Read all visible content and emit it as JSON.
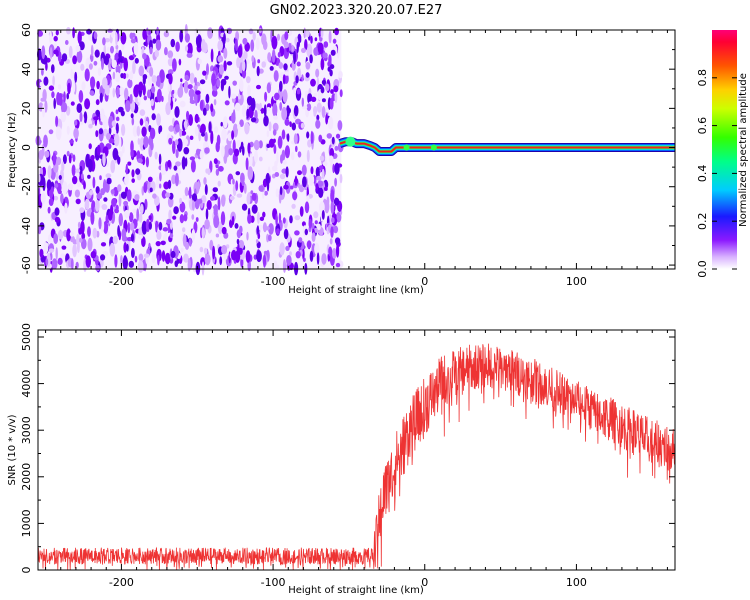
{
  "title": "GN02.2023.320.20.07.E27",
  "chart_data": [
    {
      "type": "heatmap",
      "xlabel": "Height of straight line (km)",
      "ylabel": "Frequency (Hz)",
      "xlim": [
        -255,
        165
      ],
      "ylim": [
        -62,
        60
      ],
      "x_ticks": [
        -200,
        -100,
        0,
        100
      ],
      "y_ticks": [
        -60,
        -40,
        -20,
        0,
        20,
        40,
        60
      ],
      "noise_region": [
        -255,
        -55
      ],
      "track": [
        [
          -56,
          2
        ],
        [
          -52,
          3
        ],
        [
          -48,
          3
        ],
        [
          -45,
          2
        ],
        [
          -40,
          2
        ],
        [
          -36,
          1
        ],
        [
          -33,
          0
        ],
        [
          -30,
          -2
        ],
        [
          -26,
          -2
        ],
        [
          -22,
          -2
        ],
        [
          -19,
          0
        ],
        [
          -10,
          0
        ],
        [
          0,
          0
        ],
        [
          50,
          0
        ],
        [
          100,
          0
        ],
        [
          165,
          0
        ]
      ],
      "colorbar": {
        "label": "Normalized spectral amplitude",
        "range": [
          0,
          1
        ],
        "ticks": [
          "0.0",
          "0.2",
          "0.4",
          "0.6",
          "0.8"
        ]
      }
    },
    {
      "type": "line",
      "xlabel": "Height of straight line (km)",
      "ylabel": "SNR (10 * v/v)",
      "xlim": [
        -255,
        165
      ],
      "ylim": [
        0,
        5150
      ],
      "x_ticks": [
        -200,
        -100,
        0,
        100
      ],
      "y_ticks": [
        0,
        1000,
        2000,
        3000,
        4000,
        5000
      ],
      "series_color": "#ee3333",
      "envelope": [
        [
          -255,
          300
        ],
        [
          -35,
          300
        ],
        [
          -32,
          700
        ],
        [
          -28,
          1500
        ],
        [
          -20,
          2200
        ],
        [
          -10,
          3000
        ],
        [
          0,
          3500
        ],
        [
          10,
          4000
        ],
        [
          20,
          4200
        ],
        [
          30,
          4350
        ],
        [
          40,
          4400
        ],
        [
          55,
          4300
        ],
        [
          70,
          4100
        ],
        [
          90,
          3800
        ],
        [
          110,
          3450
        ],
        [
          130,
          3100
        ],
        [
          150,
          2750
        ],
        [
          165,
          2550
        ]
      ],
      "noise_amplitude": [
        [
          -255,
          180
        ],
        [
          -35,
          180
        ],
        [
          -30,
          600
        ],
        [
          -20,
          700
        ],
        [
          0,
          650
        ],
        [
          30,
          500
        ],
        [
          60,
          480
        ],
        [
          100,
          450
        ],
        [
          130,
          500
        ],
        [
          165,
          500
        ]
      ]
    }
  ]
}
